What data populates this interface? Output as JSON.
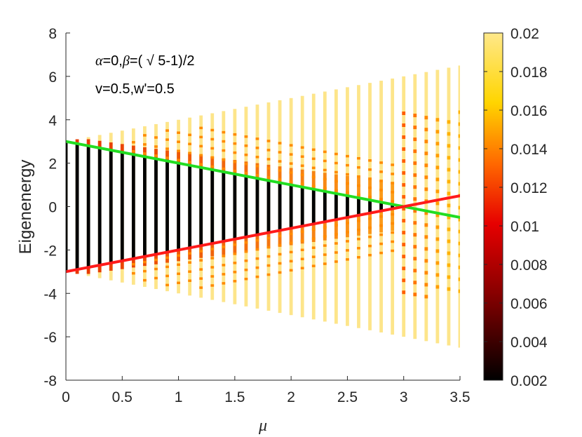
{
  "chart_data": {
    "type": "scatter",
    "xlabel": "μ",
    "ylabel": "Eigenenergy",
    "xlim": [
      0,
      3.5
    ],
    "ylim": [
      -8,
      8
    ],
    "x_ticks": [
      "0",
      "0.5",
      "1",
      "1.5",
      "2",
      "2.5",
      "3",
      "3.5"
    ],
    "y_ticks": [
      "-8",
      "-6",
      "-4",
      "-2",
      "0",
      "2",
      "4",
      "6",
      "8"
    ],
    "annotation": {
      "line1": {
        "alpha": "α",
        "p1": "=0,",
        "beta": "β",
        "p2": "=( √ 5-1)/2"
      },
      "line2": "v=0.5,w'=0.5"
    },
    "mu_step": 0.1,
    "mu_start": 0,
    "mu_end": 3.5,
    "spectrum_half_width": {
      "intercept": 3,
      "slope": 1
    },
    "lines": [
      {
        "name": "",
        "color": "#22dd22",
        "x": [
          0,
          3.5
        ],
        "y": [
          3,
          -0.5
        ]
      },
      {
        "name": "",
        "color": "#ff1a1a",
        "x": [
          0,
          3.5
        ],
        "y": [
          -3,
          0.5
        ]
      }
    ],
    "colorbar": {
      "min": 0.002,
      "max": 0.02,
      "ticks": [
        "0.002",
        "0.004",
        "0.006",
        "0.008",
        "0.01",
        "0.012",
        "0.014",
        "0.016",
        "0.018",
        "0.02"
      ],
      "colormap": "hot",
      "stops": [
        "#000000",
        "#cc0000",
        "#ff6600",
        "#ffcc00",
        "#ffe680"
      ]
    },
    "grid": false
  }
}
